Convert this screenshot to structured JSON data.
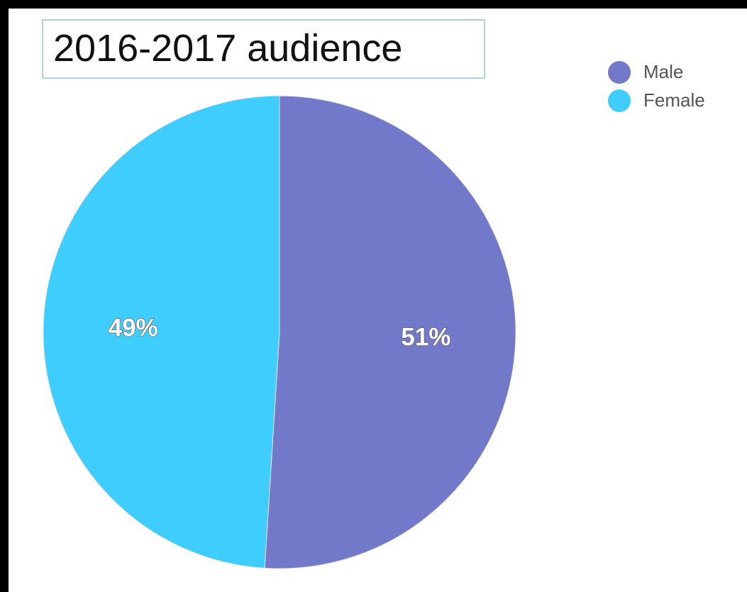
{
  "chart_data": {
    "type": "pie",
    "title": "2016-2017 audience",
    "slices": [
      {
        "label": "Male",
        "value": 51,
        "display": "51%",
        "color": "#7279c9"
      },
      {
        "label": "Female",
        "value": 49,
        "display": "49%",
        "color": "#3ecdfc"
      }
    ],
    "legend": {
      "placement": "top-right",
      "items": [
        {
          "label": "Male",
          "color": "#7279c9"
        },
        {
          "label": "Female",
          "color": "#3ecdfc"
        }
      ]
    }
  }
}
